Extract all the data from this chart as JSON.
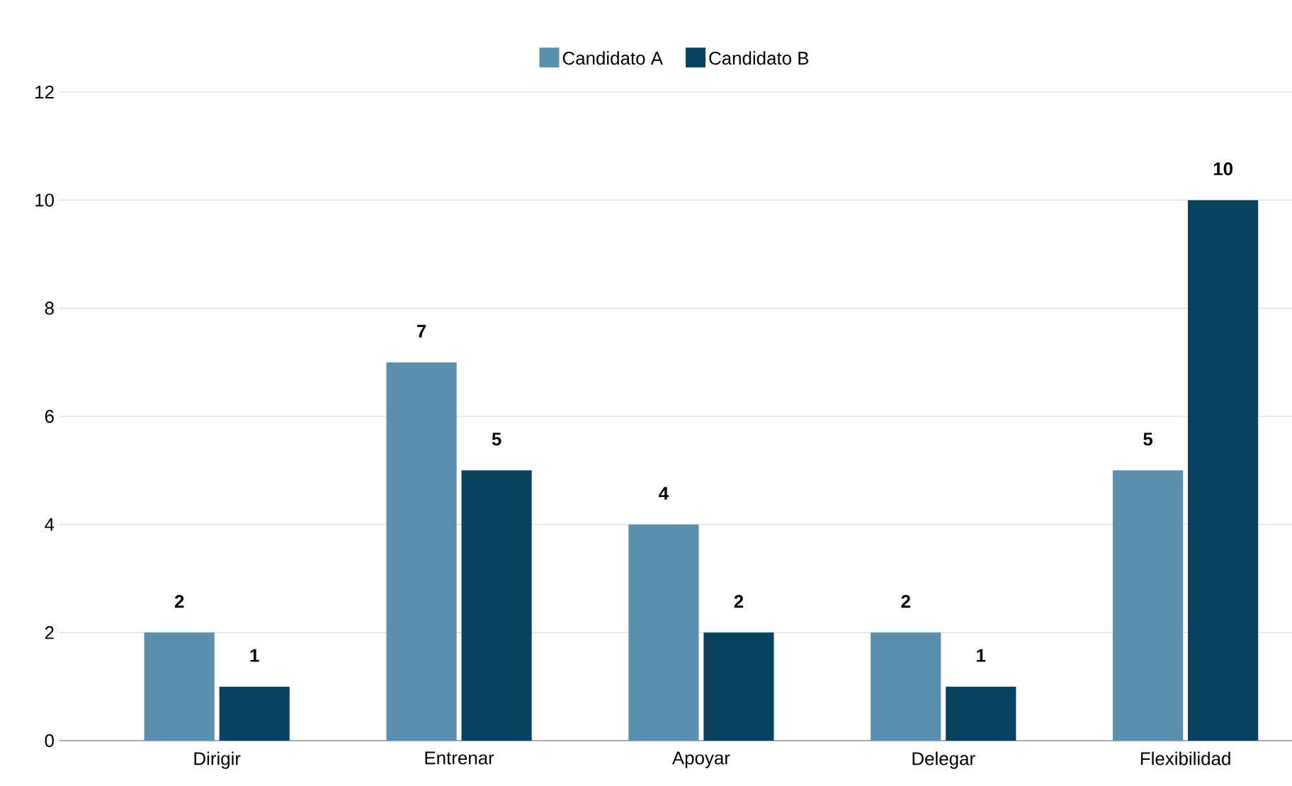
{
  "chart_data": {
    "type": "bar",
    "categories": [
      "Dirigir",
      "Entrenar",
      "Apoyar",
      "Delegar",
      "Flexibilidad"
    ],
    "series": [
      {
        "name": "Candidato A",
        "color": "#5b8fae",
        "values": [
          2,
          7,
          4,
          2,
          5
        ]
      },
      {
        "name": "Candidato B",
        "color": "#07435e",
        "values": [
          1,
          5,
          2,
          1,
          10
        ]
      }
    ],
    "ylim": [
      0,
      12
    ],
    "yticks": [
      0,
      2,
      4,
      6,
      8,
      10,
      12
    ],
    "grid": "y",
    "legend": "top",
    "data_labels": true
  }
}
